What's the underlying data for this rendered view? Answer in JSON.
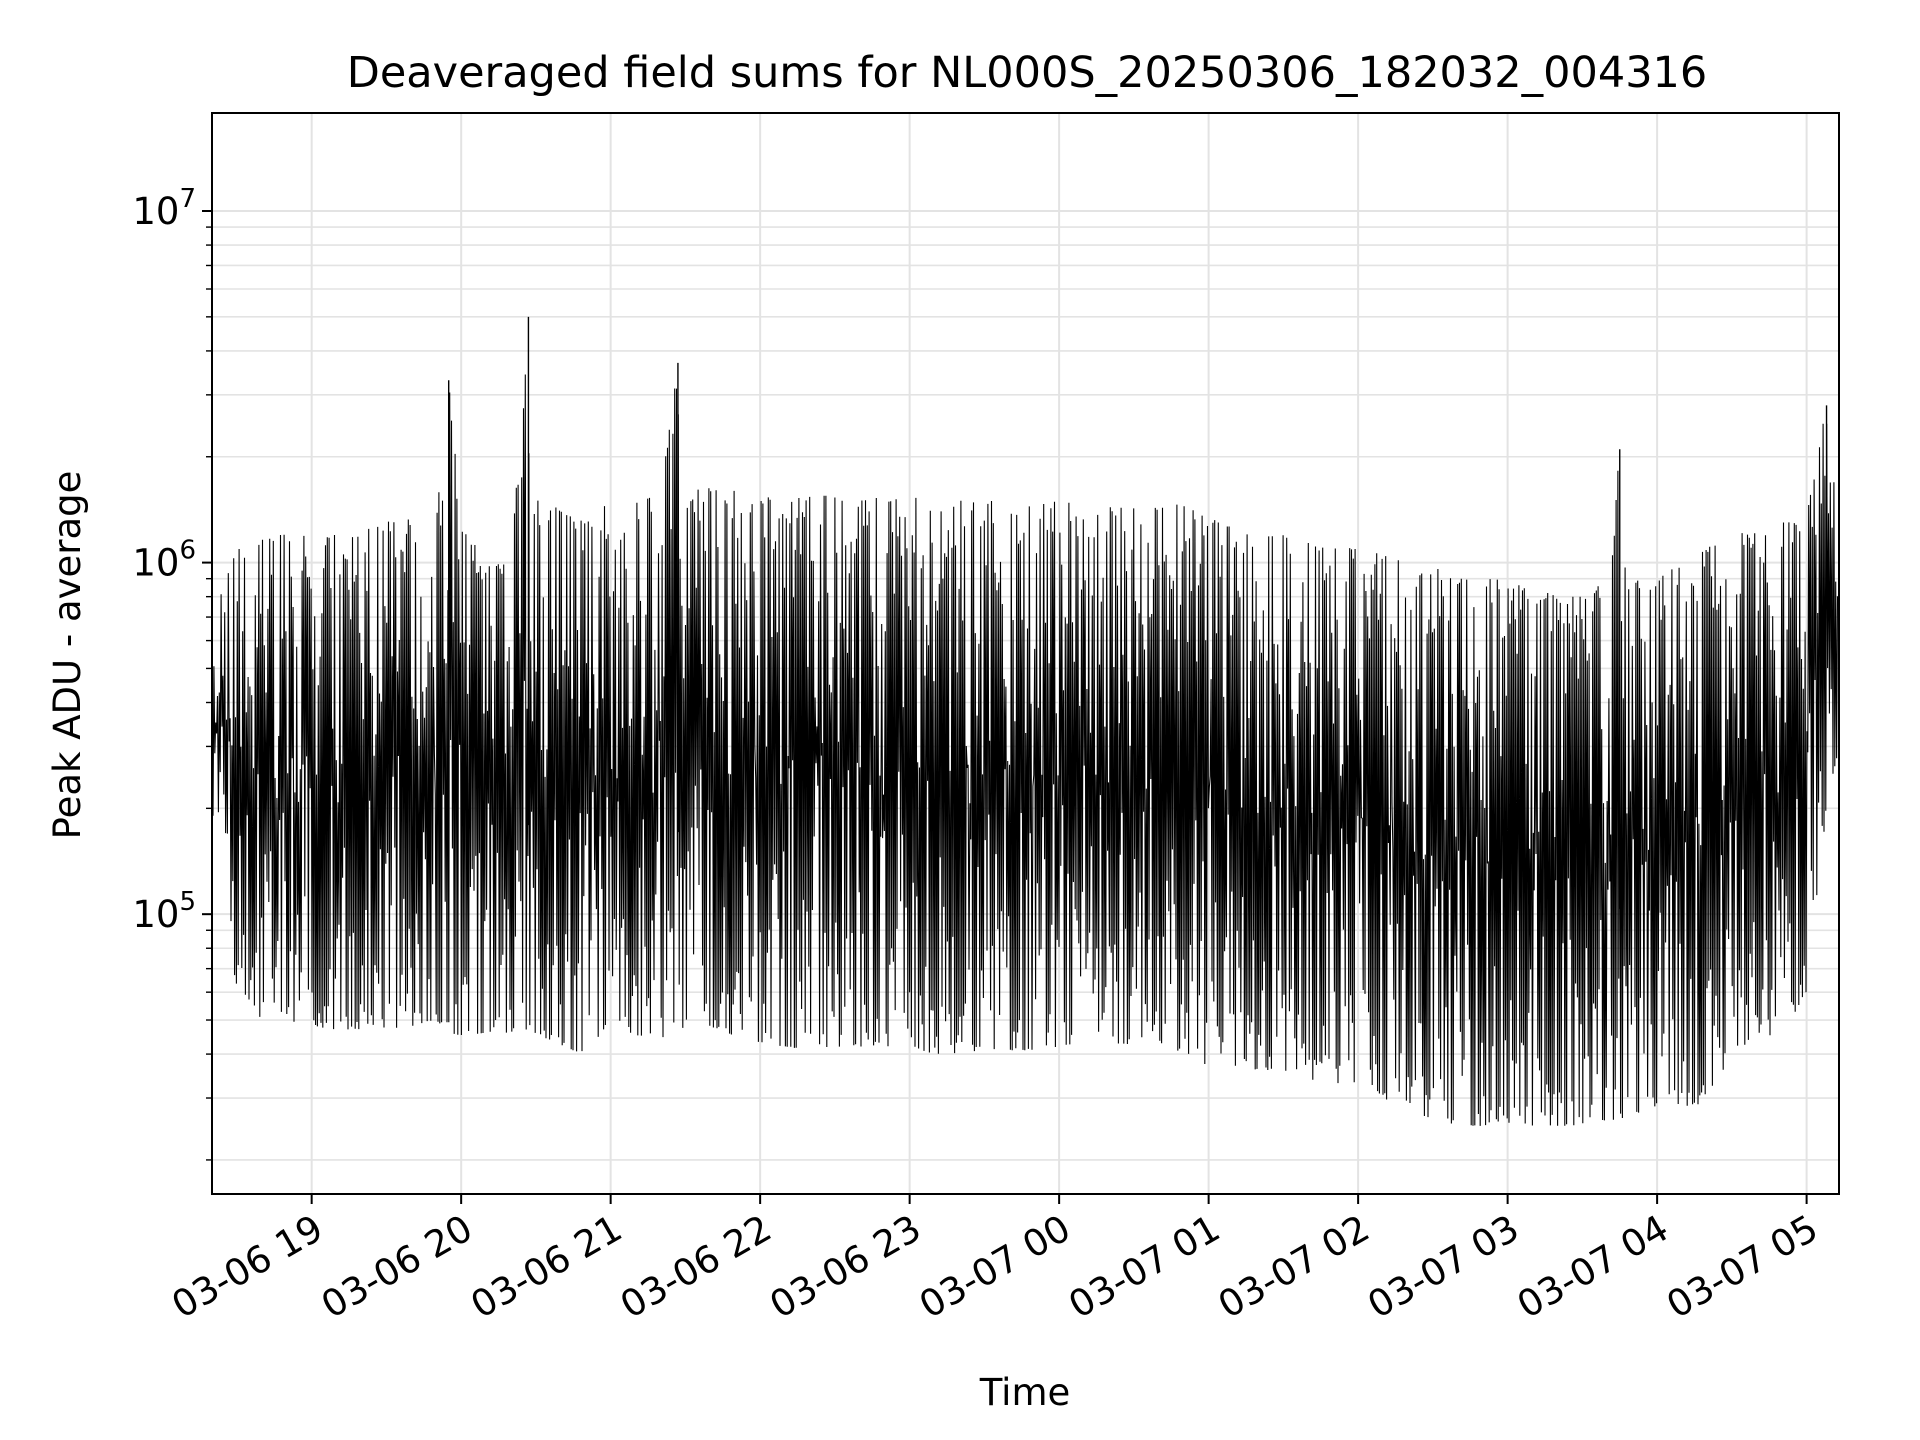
{
  "chart_data": {
    "type": "line",
    "title": "Deaveraged field sums for NL000S_20250306_182032_004316",
    "xlabel": "Time",
    "ylabel": "Peak ADU - average",
    "yscale": "log",
    "ylim": [
      16000,
      19000000
    ],
    "xlim": [
      "2025-03-06 18:20",
      "2025-03-07 05:13"
    ],
    "grid": true,
    "line_color": "#000000",
    "x_ticks": [
      {
        "value": "2025-03-06 19:00",
        "label": "03-06 19"
      },
      {
        "value": "2025-03-06 20:00",
        "label": "03-06 20"
      },
      {
        "value": "2025-03-06 21:00",
        "label": "03-06 21"
      },
      {
        "value": "2025-03-06 22:00",
        "label": "03-06 22"
      },
      {
        "value": "2025-03-06 23:00",
        "label": "03-06 23"
      },
      {
        "value": "2025-03-07 00:00",
        "label": "03-07 00"
      },
      {
        "value": "2025-03-07 01:00",
        "label": "03-07 01"
      },
      {
        "value": "2025-03-07 02:00",
        "label": "03-07 02"
      },
      {
        "value": "2025-03-07 03:00",
        "label": "03-07 03"
      },
      {
        "value": "2025-03-07 04:00",
        "label": "03-07 04"
      },
      {
        "value": "2025-03-07 05:00",
        "label": "03-07 05"
      }
    ],
    "y_ticks": [
      {
        "value": 100000,
        "base": "10",
        "exp": "5"
      },
      {
        "value": 1000000,
        "base": "10",
        "exp": "6"
      },
      {
        "value": 10000000,
        "base": "10",
        "exp": "7"
      }
    ],
    "series": [
      {
        "x": [
          "2025-03-06 18:20",
          "2025-03-06 18:30",
          "2025-03-06 18:40",
          "2025-03-06 18:50",
          "2025-03-06 19:00",
          "2025-03-06 19:10",
          "2025-03-06 19:20",
          "2025-03-06 19:30",
          "2025-03-06 19:40",
          "2025-03-06 19:50",
          "2025-03-06 19:55",
          "2025-03-06 20:00",
          "2025-03-06 20:10",
          "2025-03-06 20:20",
          "2025-03-06 20:27",
          "2025-03-06 20:30",
          "2025-03-06 20:40",
          "2025-03-06 20:50",
          "2025-03-06 21:00",
          "2025-03-06 21:10",
          "2025-03-06 21:20",
          "2025-03-06 21:27",
          "2025-03-06 21:30",
          "2025-03-06 21:40",
          "2025-03-06 21:50",
          "2025-03-06 22:00",
          "2025-03-06 22:10",
          "2025-03-06 22:20",
          "2025-03-06 22:30",
          "2025-03-06 22:40",
          "2025-03-06 22:50",
          "2025-03-06 23:00",
          "2025-03-06 23:10",
          "2025-03-06 23:20",
          "2025-03-06 23:30",
          "2025-03-06 23:40",
          "2025-03-06 23:50",
          "2025-03-07 00:00",
          "2025-03-07 00:10",
          "2025-03-07 00:20",
          "2025-03-07 00:30",
          "2025-03-07 00:40",
          "2025-03-07 00:50",
          "2025-03-07 01:00",
          "2025-03-07 01:10",
          "2025-03-07 01:20",
          "2025-03-07 01:30",
          "2025-03-07 01:40",
          "2025-03-07 01:50",
          "2025-03-07 02:00",
          "2025-03-07 02:10",
          "2025-03-07 02:20",
          "2025-03-07 02:30",
          "2025-03-07 02:40",
          "2025-03-07 02:50",
          "2025-03-07 03:00",
          "2025-03-07 03:10",
          "2025-03-07 03:20",
          "2025-03-07 03:30",
          "2025-03-07 03:40",
          "2025-03-07 03:45",
          "2025-03-07 03:50",
          "2025-03-07 04:00",
          "2025-03-07 04:10",
          "2025-03-07 04:20",
          "2025-03-07 04:30",
          "2025-03-07 04:40",
          "2025-03-07 04:50",
          "2025-03-07 05:00",
          "2025-03-07 05:08",
          "2025-03-07 05:13"
        ],
        "y_low": [
          200000,
          60000,
          50000,
          50000,
          48000,
          47000,
          47000,
          47000,
          48000,
          50000,
          46000,
          45000,
          46000,
          46000,
          45000,
          46000,
          42000,
          40000,
          50000,
          45000,
          45000,
          43000,
          50000,
          48000,
          45000,
          43000,
          42000,
          41000,
          42000,
          41000,
          42000,
          42000,
          40000,
          40000,
          41000,
          41000,
          41000,
          42000,
          41000,
          42000,
          43000,
          43000,
          40000,
          37000,
          37000,
          36000,
          36000,
          34000,
          33000,
          33000,
          30000,
          28000,
          26000,
          25000,
          25000,
          25000,
          25000,
          25000,
          25000,
          26000,
          26000,
          27000,
          28000,
          28000,
          29000,
          40000,
          45000,
          45000,
          60000,
          200000,
          300000
        ],
        "y_high": [
          700000,
          1100000,
          1200000,
          1200000,
          1200000,
          1200000,
          1250000,
          1300000,
          1400000,
          1300000,
          3300000,
          1300000,
          1000000,
          1000000,
          5000000,
          1600000,
          1400000,
          1300000,
          1500000,
          1500000,
          1550000,
          3700000,
          1600000,
          1650000,
          1600000,
          1550000,
          1500000,
          1550000,
          1550000,
          1500000,
          1550000,
          1550000,
          1500000,
          1500000,
          1500000,
          1500000,
          1450000,
          1500000,
          1450000,
          1450000,
          1450000,
          1500000,
          1450000,
          1350000,
          1250000,
          1200000,
          1200000,
          1150000,
          1100000,
          1100000,
          1050000,
          1000000,
          1000000,
          900000,
          900000,
          900000,
          850000,
          800000,
          800000,
          900000,
          2100000,
          900000,
          900000,
          1000000,
          1100000,
          1200000,
          1250000,
          1300000,
          1400000,
          2800000,
          1200000
        ]
      }
    ]
  }
}
